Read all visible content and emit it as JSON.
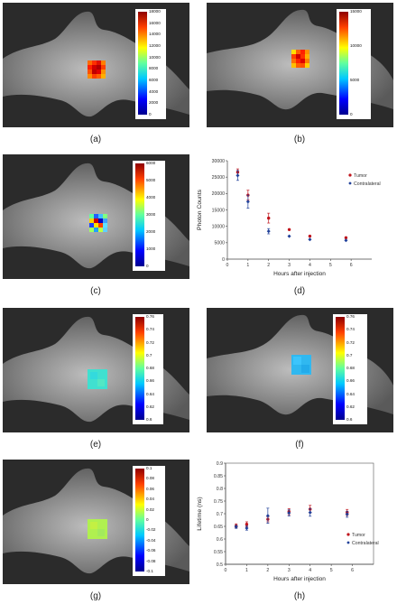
{
  "panels": {
    "a": {
      "label": "(a)",
      "colorbar_ticks": [
        "18000",
        "16000",
        "14000",
        "12000",
        "10000",
        "8000",
        "6000",
        "4000",
        "2000",
        "0"
      ]
    },
    "b": {
      "label": "(b)",
      "colorbar_ticks": [
        "15000",
        "10000",
        "5000",
        "0"
      ]
    },
    "c": {
      "label": "(c)",
      "colorbar_ticks": [
        "6000",
        "5000",
        "4000",
        "3000",
        "2000",
        "1000",
        "0"
      ]
    },
    "d": {
      "label": "(d)"
    },
    "e": {
      "label": "(e)",
      "colorbar_ticks": [
        "0.76",
        "0.74",
        "0.72",
        "0.7",
        "0.68",
        "0.66",
        "0.64",
        "0.62",
        "0.6"
      ]
    },
    "f": {
      "label": "(f)",
      "colorbar_ticks": [
        "0.76",
        "0.74",
        "0.72",
        "0.7",
        "0.68",
        "0.66",
        "0.64",
        "0.62",
        "0.6"
      ]
    },
    "g": {
      "label": "(g)",
      "colorbar_ticks": [
        "0.1",
        "0.08",
        "0.06",
        "0.04",
        "0.02",
        "0",
        "-0.02",
        "-0.04",
        "-0.06",
        "-0.08",
        "-0.1"
      ]
    },
    "h": {
      "label": "(h)"
    }
  },
  "chart_data": [
    {
      "type": "scatter",
      "panel": "d",
      "title": "",
      "xlabel": "Hours after injection",
      "ylabel": "Photon Counts",
      "xlim": [
        0,
        7
      ],
      "ylim": [
        0,
        30000
      ],
      "xticks": [
        0,
        1,
        2,
        3,
        4,
        5,
        6
      ],
      "yticks": [
        0,
        5000,
        10000,
        15000,
        20000,
        25000,
        30000
      ],
      "ytick_labels": [
        "0",
        "5000",
        "10000",
        "15000",
        "20000",
        "25000",
        "30000"
      ],
      "grid": false,
      "legend": "right",
      "series": [
        {
          "name": "Tumor",
          "color": "#c0141c",
          "x": [
            0.5,
            1,
            2,
            3,
            4,
            5.75
          ],
          "y": [
            26500,
            19500,
            12500,
            9000,
            7000,
            6500
          ],
          "err": [
            1000,
            1500,
            1500,
            0,
            0,
            0
          ]
        },
        {
          "name": "Contralateral",
          "color": "#1f3f99",
          "x": [
            0.5,
            1,
            2,
            3,
            4,
            5.75
          ],
          "y": [
            25500,
            17500,
            8500,
            7000,
            6000,
            5700
          ],
          "err": [
            1500,
            2000,
            800,
            0,
            0,
            0
          ]
        }
      ]
    },
    {
      "type": "scatter",
      "panel": "h",
      "title": "",
      "xlabel": "Hours after injection",
      "ylabel": "Lifetime (ns)",
      "xlim": [
        0,
        7
      ],
      "ylim": [
        0.5,
        0.9
      ],
      "xticks": [
        0,
        1,
        2,
        3,
        4,
        5,
        6
      ],
      "yticks": [
        0.5,
        0.55,
        0.6,
        0.65,
        0.7,
        0.75,
        0.8,
        0.85,
        0.9
      ],
      "ytick_labels": [
        "0.5",
        "0.55",
        "0.6",
        "0.65",
        "0.7",
        "0.75",
        "0.8",
        "0.85",
        "0.9"
      ],
      "grid": false,
      "legend": "bottom-right",
      "series": [
        {
          "name": "Tumor",
          "color": "#c0141c",
          "x": [
            0.5,
            1,
            2,
            3,
            4,
            5.75
          ],
          "y": [
            0.652,
            0.658,
            0.678,
            0.708,
            0.718,
            0.705
          ],
          "err": [
            0.008,
            0.01,
            0.01,
            0.012,
            0.015,
            0.012
          ]
        },
        {
          "name": "Contralateral",
          "color": "#1f3f99",
          "x": [
            0.5,
            1,
            2,
            3,
            4,
            5.75
          ],
          "y": [
            0.648,
            0.643,
            0.692,
            0.703,
            0.705,
            0.698
          ],
          "err": [
            0.006,
            0.008,
            0.03,
            0.012,
            0.015,
            0.012
          ]
        }
      ]
    }
  ]
}
